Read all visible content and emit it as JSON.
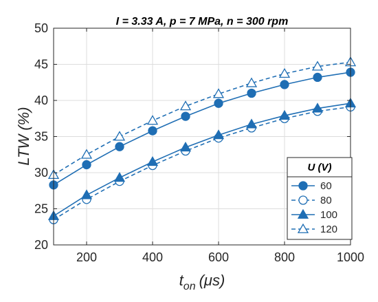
{
  "colors": {
    "series": "#1f6eb4",
    "axis": "#262626",
    "grid": "#dcdcdc"
  },
  "chart_data": {
    "type": "line",
    "title": "I = 3.33 A, p = 7 MPa, n = 300 rpm",
    "xlabel_main": "t",
    "xlabel_sub": "on",
    "xlabel_unit": "(μs)",
    "ylabel": "LTW (%)",
    "xlim": [
      100,
      1000
    ],
    "ylim": [
      20,
      50
    ],
    "xticks": [
      200,
      400,
      600,
      800,
      1000
    ],
    "yticks": [
      20,
      25,
      30,
      35,
      40,
      45,
      50
    ],
    "grid": true,
    "legend_title": "U (V)",
    "legend_position": "bottom-right",
    "x": [
      100,
      200,
      300,
      400,
      500,
      600,
      700,
      800,
      900,
      1000
    ],
    "series": [
      {
        "name": "60",
        "marker": "circle",
        "filled": true,
        "dashed": false,
        "values": [
          28.3,
          31.1,
          33.6,
          35.8,
          37.8,
          39.6,
          41.0,
          42.2,
          43.2,
          43.9
        ]
      },
      {
        "name": "80",
        "marker": "circle",
        "filled": false,
        "dashed": true,
        "values": [
          23.5,
          26.3,
          28.8,
          31.0,
          33.0,
          34.8,
          36.2,
          37.5,
          38.5,
          39.1
        ]
      },
      {
        "name": "100",
        "marker": "triangle",
        "filled": true,
        "dashed": false,
        "values": [
          24.0,
          26.9,
          29.3,
          31.5,
          33.5,
          35.2,
          36.7,
          37.9,
          38.9,
          39.6
        ]
      },
      {
        "name": "120",
        "marker": "triangle",
        "filled": false,
        "dashed": true,
        "values": [
          29.7,
          32.5,
          35.0,
          37.2,
          39.2,
          40.9,
          42.4,
          43.7,
          44.7,
          45.3
        ]
      }
    ]
  }
}
